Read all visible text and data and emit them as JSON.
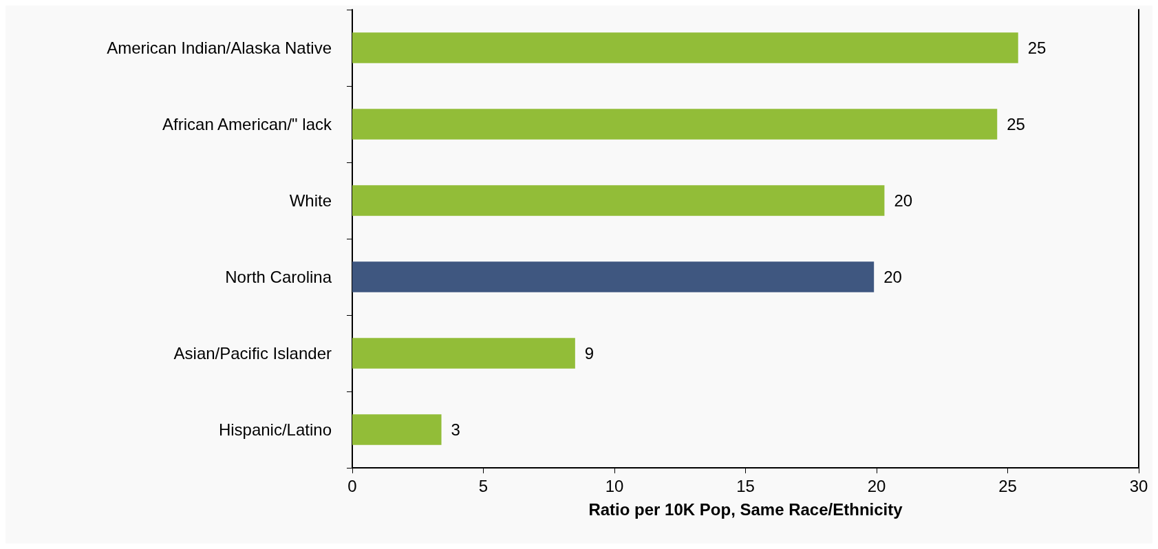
{
  "chart_data": {
    "type": "bar",
    "orientation": "horizontal",
    "xlabel": "Ratio per 10K Pop, Same Race/Ethnicity",
    "categories": [
      "American Indian/Alaska Native",
      "African American/\" lack",
      "White",
      "North Carolina",
      "Asian/Pacific Islander",
      "Hispanic/Latino"
    ],
    "values": [
      25.4,
      24.6,
      20.3,
      19.9,
      8.5,
      3.4
    ],
    "colors": [
      "#92bd38",
      "#92bd38",
      "#92bd38",
      "#3f5780",
      "#92bd38",
      "#92bd38"
    ],
    "value_labels": [
      "25",
      "25",
      "20",
      "20",
      "9",
      "3"
    ],
    "xlim": [
      0,
      30
    ],
    "xticks": [
      0,
      5,
      10,
      15,
      20,
      25,
      30
    ],
    "grid": false
  }
}
